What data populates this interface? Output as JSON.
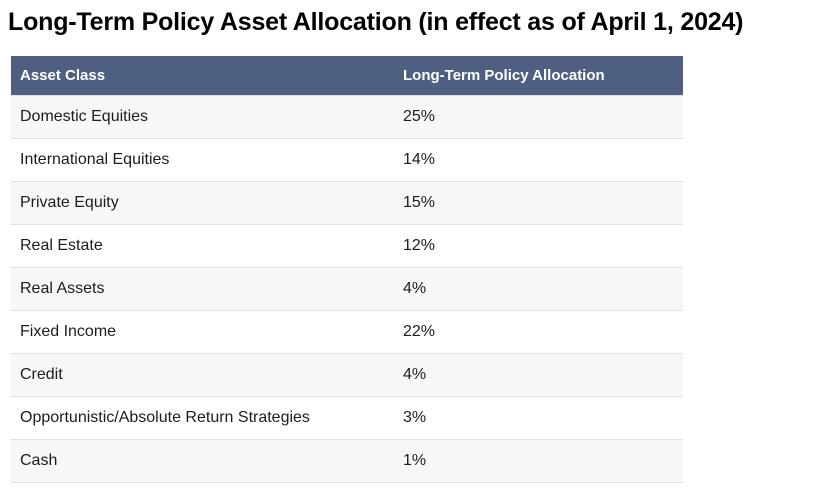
{
  "page": {
    "title": "Long-Term Policy Asset Allocation (in effect as of April 1, 2024)"
  },
  "table": {
    "columns": [
      {
        "label": "Asset Class"
      },
      {
        "label": "Long-Term Policy Allocation"
      }
    ],
    "rows": [
      {
        "asset_class": "Domestic Equities",
        "allocation": "25%"
      },
      {
        "asset_class": "International Equities",
        "allocation": "14%"
      },
      {
        "asset_class": "Private Equity",
        "allocation": "15%"
      },
      {
        "asset_class": "Real Estate",
        "allocation": "12%"
      },
      {
        "asset_class": "Real Assets",
        "allocation": "4%"
      },
      {
        "asset_class": "Fixed Income",
        "allocation": "22%"
      },
      {
        "asset_class": "Credit",
        "allocation": "4%"
      },
      {
        "asset_class": "Opportunistic/Absolute Return Strategies",
        "allocation": "3%"
      },
      {
        "asset_class": "Cash",
        "allocation": "1%"
      }
    ]
  },
  "colors": {
    "header_background": "#4e5f82",
    "header_text": "#ffffff",
    "row_alt_background": "#f7f7f7",
    "row_background": "#ffffff",
    "row_border": "#e0e0e0",
    "title_text": "#000000",
    "body_text": "#1c1c1c"
  }
}
